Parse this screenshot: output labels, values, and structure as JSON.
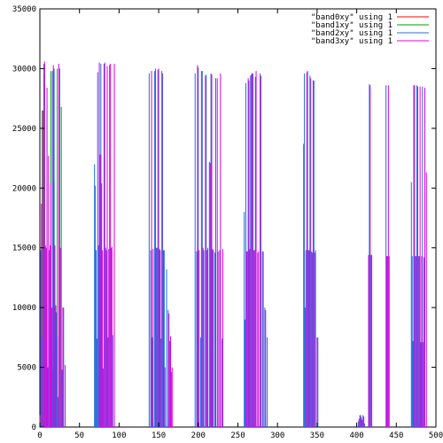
{
  "chart_data": {
    "type": "line",
    "style": "impulses",
    "title": "",
    "xlabel": "",
    "ylabel": "",
    "xlim": [
      0,
      500
    ],
    "ylim": [
      0,
      35000
    ],
    "grid": false,
    "legend_position": "top-right",
    "x_ticks": [
      0,
      50,
      100,
      150,
      200,
      250,
      300,
      350,
      400,
      450,
      500
    ],
    "y_ticks": [
      0,
      5000,
      10000,
      15000,
      20000,
      25000,
      30000,
      35000
    ],
    "series": [
      {
        "name": "\"band0xy\" using 1",
        "color": "#ff0000",
        "points": [
          [
            0,
            1000
          ],
          [
            2,
            5000
          ],
          [
            405,
            600
          ],
          [
            408,
            400
          ]
        ]
      },
      {
        "name": "\"band1xy\" using 1",
        "color": "#00a000",
        "points": [
          [
            3,
            26500
          ],
          [
            6,
            29500
          ],
          [
            9,
            27000
          ],
          [
            14,
            29800
          ],
          [
            18,
            20500
          ],
          [
            22,
            30000
          ],
          [
            27,
            26800
          ]
        ]
      },
      {
        "name": "\"band2xy\" using 1",
        "color": "#1f6fd8",
        "points": [
          [
            1,
            14800
          ],
          [
            3,
            7500
          ],
          [
            5,
            30400
          ],
          [
            7,
            15200
          ],
          [
            8,
            10000
          ],
          [
            10,
            5000
          ],
          [
            12,
            14800
          ],
          [
            13,
            7600
          ],
          [
            15,
            6200
          ],
          [
            16,
            29800
          ],
          [
            17,
            4800
          ],
          [
            18,
            30000
          ],
          [
            19,
            15000
          ],
          [
            20,
            10200
          ],
          [
            21,
            9600
          ],
          [
            22,
            7600
          ],
          [
            23,
            2500
          ],
          [
            25,
            30000
          ],
          [
            28,
            4800
          ],
          [
            30,
            10000
          ],
          [
            69,
            22000
          ],
          [
            70,
            20200
          ],
          [
            71,
            14800
          ],
          [
            72,
            7400
          ],
          [
            73,
            29700
          ],
          [
            74,
            15200
          ],
          [
            76,
            22800
          ],
          [
            77,
            30400
          ],
          [
            78,
            14800
          ],
          [
            80,
            4900
          ],
          [
            82,
            30500
          ],
          [
            84,
            14800
          ],
          [
            86,
            7500
          ],
          [
            88,
            30300
          ],
          [
            90,
            15000
          ],
          [
            92,
            7700
          ],
          [
            138,
            29600
          ],
          [
            140,
            14800
          ],
          [
            142,
            7500
          ],
          [
            145,
            29800
          ],
          [
            147,
            15000
          ],
          [
            149,
            29900
          ],
          [
            151,
            14900
          ],
          [
            153,
            7400
          ],
          [
            155,
            29600
          ],
          [
            157,
            14800
          ],
          [
            160,
            13200
          ],
          [
            162,
            9800
          ],
          [
            164,
            7200
          ],
          [
            166,
            4600
          ],
          [
            196,
            29600
          ],
          [
            198,
            14700
          ],
          [
            200,
            30100
          ],
          [
            203,
            7500
          ],
          [
            205,
            29800
          ],
          [
            207,
            14800
          ],
          [
            210,
            29500
          ],
          [
            212,
            15000
          ],
          [
            214,
            22200
          ],
          [
            216,
            29600
          ],
          [
            218,
            14900
          ],
          [
            221,
            14600
          ],
          [
            224,
            29200
          ],
          [
            227,
            14800
          ],
          [
            230,
            7400
          ],
          [
            258,
            18000
          ],
          [
            259,
            9000
          ],
          [
            260,
            28800
          ],
          [
            262,
            14700
          ],
          [
            264,
            29000
          ],
          [
            266,
            29400
          ],
          [
            268,
            29600
          ],
          [
            270,
            14800
          ],
          [
            272,
            29300
          ],
          [
            275,
            14600
          ],
          [
            278,
            29600
          ],
          [
            281,
            14700
          ],
          [
            284,
            10000
          ],
          [
            287,
            7500
          ],
          [
            333,
            23700
          ],
          [
            334,
            29600
          ],
          [
            335,
            10000
          ],
          [
            336,
            14800
          ],
          [
            338,
            29800
          ],
          [
            340,
            14800
          ],
          [
            342,
            29200
          ],
          [
            344,
            14600
          ],
          [
            346,
            29000
          ],
          [
            348,
            14800
          ],
          [
            351,
            7500
          ],
          [
            402,
            500
          ],
          [
            404,
            1000
          ],
          [
            406,
            800
          ],
          [
            408,
            1000
          ],
          [
            410,
            300
          ],
          [
            416,
            28700
          ],
          [
            418,
            14400
          ],
          [
            437,
            28600
          ],
          [
            439,
            14300
          ],
          [
            469,
            20500
          ],
          [
            470,
            14300
          ],
          [
            471,
            7200
          ],
          [
            472,
            28600
          ],
          [
            474,
            14300
          ],
          [
            476,
            28600
          ],
          [
            478,
            14300
          ],
          [
            481,
            7100
          ],
          [
            483,
            28500
          ],
          [
            485,
            14200
          ]
        ]
      },
      {
        "name": "\"band3xy\" using 1",
        "color": "#e000e0",
        "points": [
          [
            2,
            18700
          ],
          [
            4,
            26500
          ],
          [
            6,
            30600
          ],
          [
            8,
            15000
          ],
          [
            9,
            28400
          ],
          [
            11,
            22700
          ],
          [
            13,
            15200
          ],
          [
            14,
            20400
          ],
          [
            15,
            10000
          ],
          [
            17,
            30300
          ],
          [
            19,
            15200
          ],
          [
            20,
            10100
          ],
          [
            24,
            30400
          ],
          [
            26,
            15000
          ],
          [
            29,
            10000
          ],
          [
            32,
            5200
          ],
          [
            75,
            30500
          ],
          [
            77,
            22800
          ],
          [
            78,
            20400
          ],
          [
            79,
            14800
          ],
          [
            81,
            30400
          ],
          [
            83,
            15000
          ],
          [
            85,
            30200
          ],
          [
            87,
            14900
          ],
          [
            89,
            30400
          ],
          [
            91,
            15100
          ],
          [
            94,
            30400
          ],
          [
            141,
            29800
          ],
          [
            143,
            14900
          ],
          [
            146,
            30000
          ],
          [
            148,
            15000
          ],
          [
            150,
            30000
          ],
          [
            152,
            14800
          ],
          [
            154,
            29800
          ],
          [
            156,
            14800
          ],
          [
            158,
            5000
          ],
          [
            163,
            9500
          ],
          [
            165,
            7600
          ],
          [
            167,
            5000
          ],
          [
            199,
            30300
          ],
          [
            201,
            14800
          ],
          [
            204,
            29800
          ],
          [
            206,
            15000
          ],
          [
            209,
            29400
          ],
          [
            211,
            14800
          ],
          [
            215,
            22100
          ],
          [
            217,
            29500
          ],
          [
            219,
            14800
          ],
          [
            222,
            29200
          ],
          [
            225,
            14700
          ],
          [
            228,
            29600
          ],
          [
            231,
            14900
          ],
          [
            261,
            14700
          ],
          [
            263,
            29200
          ],
          [
            265,
            14900
          ],
          [
            267,
            29500
          ],
          [
            269,
            29600
          ],
          [
            271,
            14800
          ],
          [
            273,
            29800
          ],
          [
            276,
            14700
          ],
          [
            279,
            29400
          ],
          [
            282,
            14700
          ],
          [
            285,
            9800
          ],
          [
            337,
            29700
          ],
          [
            339,
            14800
          ],
          [
            341,
            29400
          ],
          [
            343,
            14700
          ],
          [
            345,
            29000
          ],
          [
            347,
            14600
          ],
          [
            350,
            7500
          ],
          [
            403,
            700
          ],
          [
            405,
            1000
          ],
          [
            407,
            600
          ],
          [
            409,
            900
          ],
          [
            415,
            14400
          ],
          [
            417,
            28600
          ],
          [
            419,
            14400
          ],
          [
            438,
            14300
          ],
          [
            440,
            28600
          ],
          [
            441,
            14300
          ],
          [
            473,
            28600
          ],
          [
            475,
            14300
          ],
          [
            477,
            28500
          ],
          [
            479,
            14300
          ],
          [
            480,
            28500
          ],
          [
            482,
            14300
          ],
          [
            484,
            7100
          ],
          [
            486,
            28400
          ],
          [
            488,
            21300
          ]
        ]
      }
    ]
  }
}
